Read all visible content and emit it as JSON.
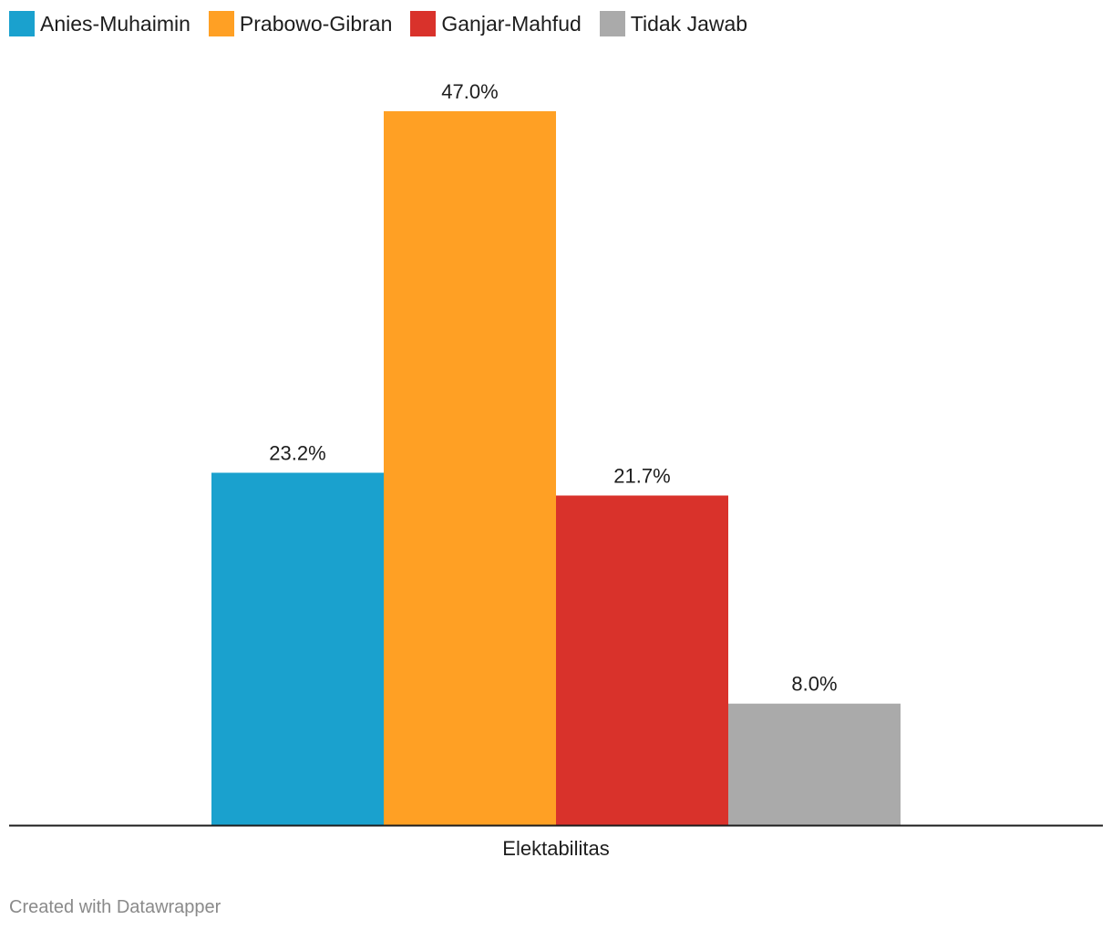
{
  "chart_data": {
    "type": "bar",
    "categories": [
      "Elektabilitas"
    ],
    "series": [
      {
        "name": "Anies-Muhaimin",
        "values": [
          23.2
        ],
        "label": "23.2%",
        "color": "#1aa1ce"
      },
      {
        "name": "Prabowo-Gibran",
        "values": [
          47.0
        ],
        "label": "47.0%",
        "color": "#ffa024"
      },
      {
        "name": "Ganjar-Mahfud",
        "values": [
          21.7
        ],
        "label": "21.7%",
        "color": "#d9322b"
      },
      {
        "name": "Tidak Jawab",
        "values": [
          8.0
        ],
        "label": "8.0%",
        "color": "#aaaaaa"
      }
    ],
    "xlabel": "Elektabilitas",
    "title": "",
    "ylabel": "",
    "ylim": [
      0,
      47.0
    ],
    "grid": false,
    "legend_position": "top-left"
  },
  "footer": {
    "credit": "Created with Datawrapper"
  }
}
